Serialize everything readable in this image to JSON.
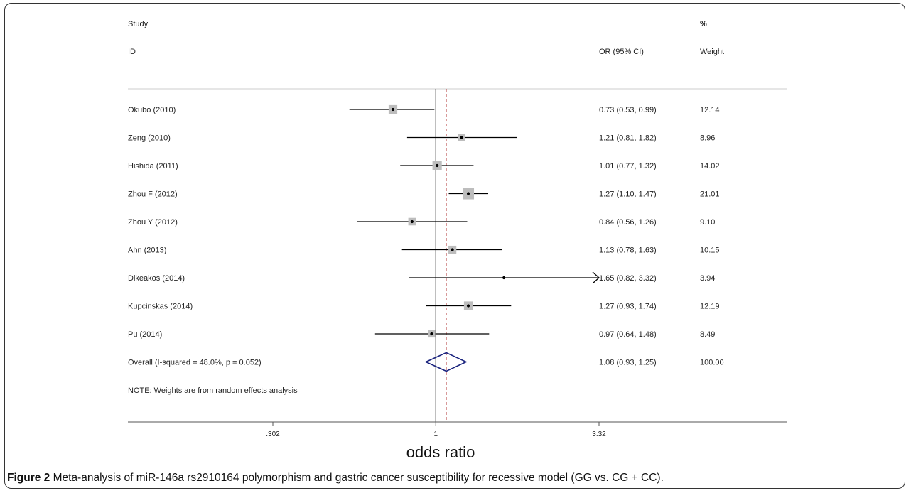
{
  "chart_data": {
    "type": "forest",
    "headers": {
      "study_line1": "Study",
      "study_line2": "ID",
      "or_header": "OR (95% CI)",
      "weight_line1": "%",
      "weight_line2": "Weight"
    },
    "studies": [
      {
        "label": "Okubo (2010)",
        "or": 0.73,
        "lo": 0.53,
        "hi": 0.99,
        "or_text": "0.73 (0.53, 0.99)",
        "weight": "12.14"
      },
      {
        "label": "Zeng (2010)",
        "or": 1.21,
        "lo": 0.81,
        "hi": 1.82,
        "or_text": "1.21 (0.81, 1.82)",
        "weight": "8.96"
      },
      {
        "label": "Hishida (2011)",
        "or": 1.01,
        "lo": 0.77,
        "hi": 1.32,
        "or_text": "1.01 (0.77, 1.32)",
        "weight": "14.02"
      },
      {
        "label": "Zhou F (2012)",
        "or": 1.27,
        "lo": 1.1,
        "hi": 1.47,
        "or_text": "1.27 (1.10, 1.47)",
        "weight": "21.01"
      },
      {
        "label": "Zhou Y (2012)",
        "or": 0.84,
        "lo": 0.56,
        "hi": 1.26,
        "or_text": "0.84 (0.56, 1.26)",
        "weight": "9.10"
      },
      {
        "label": "Ahn (2013)",
        "or": 1.13,
        "lo": 0.78,
        "hi": 1.63,
        "or_text": "1.13 (0.78, 1.63)",
        "weight": "10.15"
      },
      {
        "label": "Dikeakos (2014)",
        "or": 1.65,
        "lo": 0.82,
        "hi": 3.32,
        "or_text": "1.65 (0.82, 3.32)",
        "weight": "3.94",
        "arrow_right": true
      },
      {
        "label": "Kupcinskas (2014)",
        "or": 1.27,
        "lo": 0.93,
        "hi": 1.74,
        "or_text": "1.27 (0.93, 1.74)",
        "weight": "12.19"
      },
      {
        "label": "Pu (2014)",
        "or": 0.97,
        "lo": 0.64,
        "hi": 1.48,
        "or_text": "0.97 (0.64, 1.48)",
        "weight": "8.49"
      }
    ],
    "overall": {
      "label": "Overall  (I-squared = 48.0%, p = 0.052)",
      "or": 1.08,
      "lo": 0.93,
      "hi": 1.25,
      "or_text": "1.08 (0.93, 1.25)",
      "weight": "100.00"
    },
    "note": "NOTE: Weights are from random effects analysis",
    "x_ticks": [
      {
        "value": 0.302,
        "label": ".302"
      },
      {
        "value": 1,
        "label": "1"
      },
      {
        "value": 3.32,
        "label": "3.32"
      }
    ],
    "xlim": [
      0.302,
      3.32
    ],
    "log_scale": true,
    "null_value": 1,
    "xlabel": "odds ratio",
    "colors": {
      "marker": "#bdbdbd",
      "line": "#000000",
      "diamond": "#1a237e",
      "overall_line": "#b03030"
    }
  },
  "caption": {
    "label": "Figure 2",
    "text": " Meta-analysis of miR-146a rs2910164 polymorphism and gastric cancer susceptibility for recessive model (GG vs. CG + CC)."
  }
}
